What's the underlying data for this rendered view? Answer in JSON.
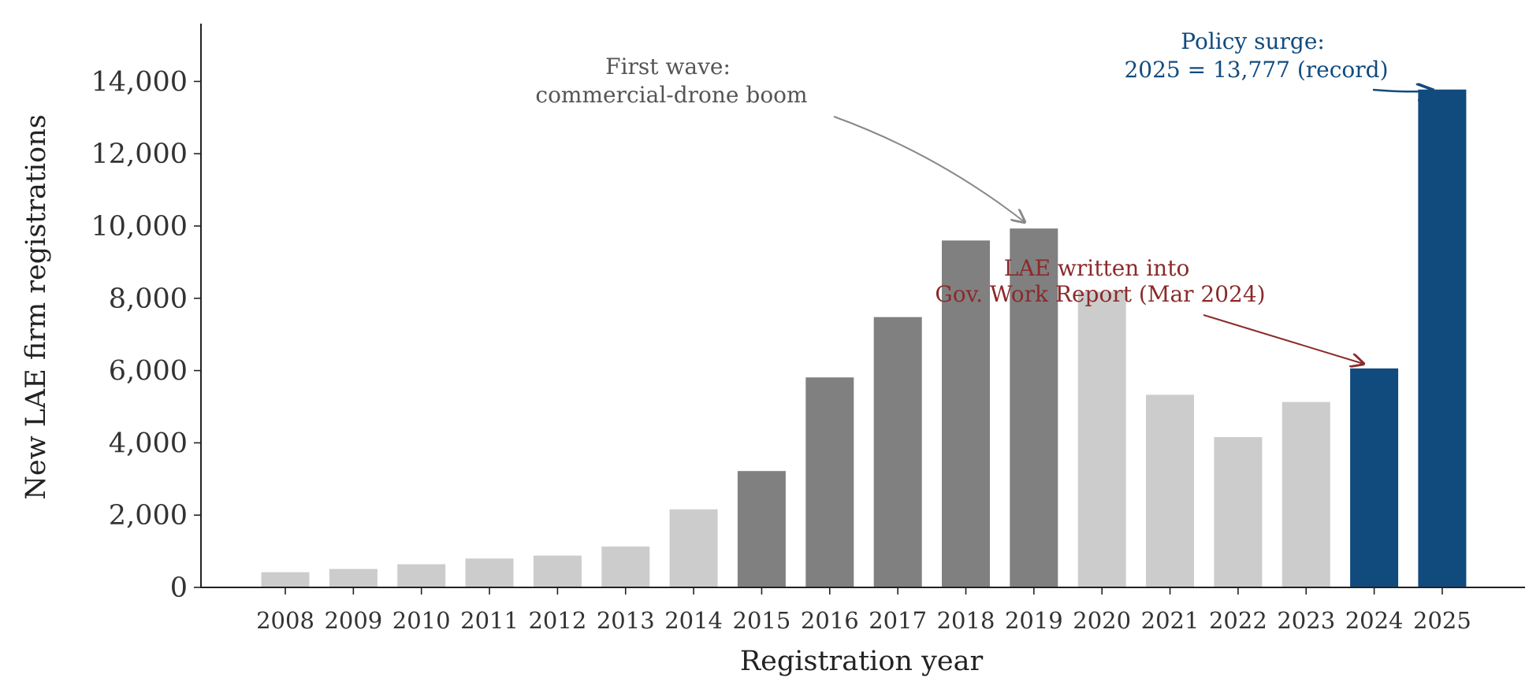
{
  "chart_data": {
    "type": "bar",
    "xlabel": "Registration year",
    "ylabel": "New LAE firm registrations",
    "ylim": [
      0,
      15600
    ],
    "yticks": [
      0,
      2000,
      4000,
      6000,
      8000,
      10000,
      12000,
      14000
    ],
    "ytick_labels": [
      "0",
      "2,000",
      "4,000",
      "6,000",
      "8,000",
      "10,000",
      "12,000",
      "14,000"
    ],
    "grid": false,
    "legend": "none",
    "categories": [
      "2008",
      "2009",
      "2010",
      "2011",
      "2012",
      "2013",
      "2014",
      "2015",
      "2016",
      "2017",
      "2018",
      "2019",
      "2020",
      "2021",
      "2022",
      "2023",
      "2024",
      "2025"
    ],
    "values": [
      420,
      510,
      640,
      800,
      880,
      1130,
      2160,
      3220,
      5810,
      7480,
      9600,
      9930,
      8180,
      5330,
      4160,
      5130,
      6060,
      13777
    ],
    "bar_groups": [
      "base",
      "base",
      "base",
      "base",
      "base",
      "base",
      "base",
      "wave",
      "wave",
      "wave",
      "wave",
      "wave",
      "base",
      "base",
      "base",
      "base",
      "policy",
      "policy"
    ],
    "colors": {
      "base": "#cccccc",
      "wave": "#808080",
      "policy": "#114b7e"
    },
    "annotations": [
      {
        "lines": [
          "First wave:",
          "commercial-drone boom"
        ],
        "target": "2019",
        "color": "#555555",
        "arrow_color": "#888888"
      },
      {
        "lines": [
          "LAE written into",
          "Gov. Work Report (Mar 2024)"
        ],
        "target": "2024",
        "color": "#8b2a2a",
        "arrow_color": "#8b2a2a"
      },
      {
        "lines": [
          "Policy surge:",
          "2025 = 13,777 (record)"
        ],
        "target": "2025",
        "color": "#114b7e",
        "arrow_color": "#114b7e"
      }
    ]
  }
}
